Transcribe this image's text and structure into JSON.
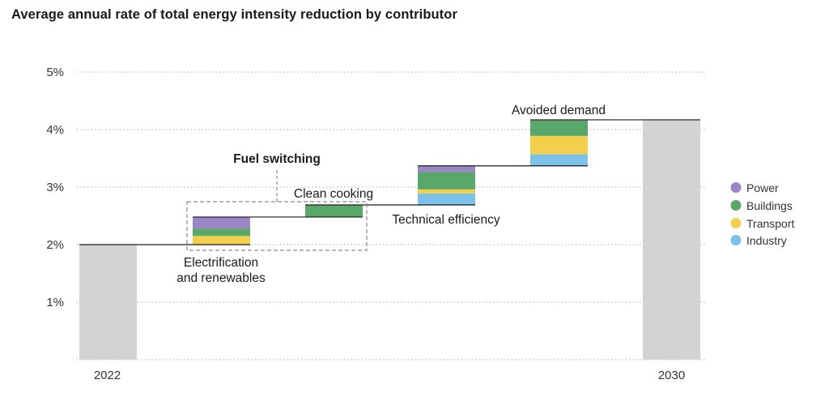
{
  "chart_data": {
    "type": "bar",
    "subtype": "waterfall",
    "title": "Average annual rate of total energy intensity reduction by contributor",
    "xlabel": "",
    "ylabel": "",
    "ylim": [
      0,
      5
    ],
    "y_ticks": [
      "1%",
      "2%",
      "3%",
      "4%",
      "5%"
    ],
    "grid": true,
    "legend_position": "right",
    "colors": {
      "total": "#d3d3d3",
      "Power": "#9b87c3",
      "Buildings": "#5aa869",
      "Transport": "#f2d04e",
      "Industry": "#7cc1ea"
    },
    "series": [
      {
        "name": "Power"
      },
      {
        "name": "Buildings"
      },
      {
        "name": "Transport"
      },
      {
        "name": "Industry"
      }
    ],
    "bars": [
      {
        "label": "2022",
        "kind": "total",
        "value": 2.0
      },
      {
        "label": "Electrification and renewables",
        "label_lines": [
          "Electrification",
          "and renewables"
        ],
        "kind": "step",
        "base": 2.0,
        "segments": [
          {
            "series": "Transport",
            "value": 0.15
          },
          {
            "series": "Buildings",
            "value": 0.13
          },
          {
            "series": "Power",
            "value": 0.2
          }
        ]
      },
      {
        "label": "Clean cooking",
        "kind": "step",
        "base": 2.48,
        "segments": [
          {
            "series": "Buildings",
            "value": 0.21
          }
        ]
      },
      {
        "label": "Technical efficiency",
        "kind": "step",
        "base": 2.69,
        "segments": [
          {
            "series": "Industry",
            "value": 0.2
          },
          {
            "series": "Transport",
            "value": 0.07
          },
          {
            "series": "Buildings",
            "value": 0.3
          },
          {
            "series": "Power",
            "value": 0.11
          }
        ]
      },
      {
        "label": "Avoided demand",
        "kind": "step",
        "base": 3.37,
        "segments": [
          {
            "series": "Industry",
            "value": 0.2
          },
          {
            "series": "Transport",
            "value": 0.32
          },
          {
            "series": "Buildings",
            "value": 0.28
          }
        ]
      },
      {
        "label": "2030",
        "kind": "total",
        "value": 4.17
      }
    ],
    "group_annotation": {
      "label": "Fuel switching",
      "members": [
        "Electrification and renewables",
        "Clean cooking"
      ]
    }
  }
}
